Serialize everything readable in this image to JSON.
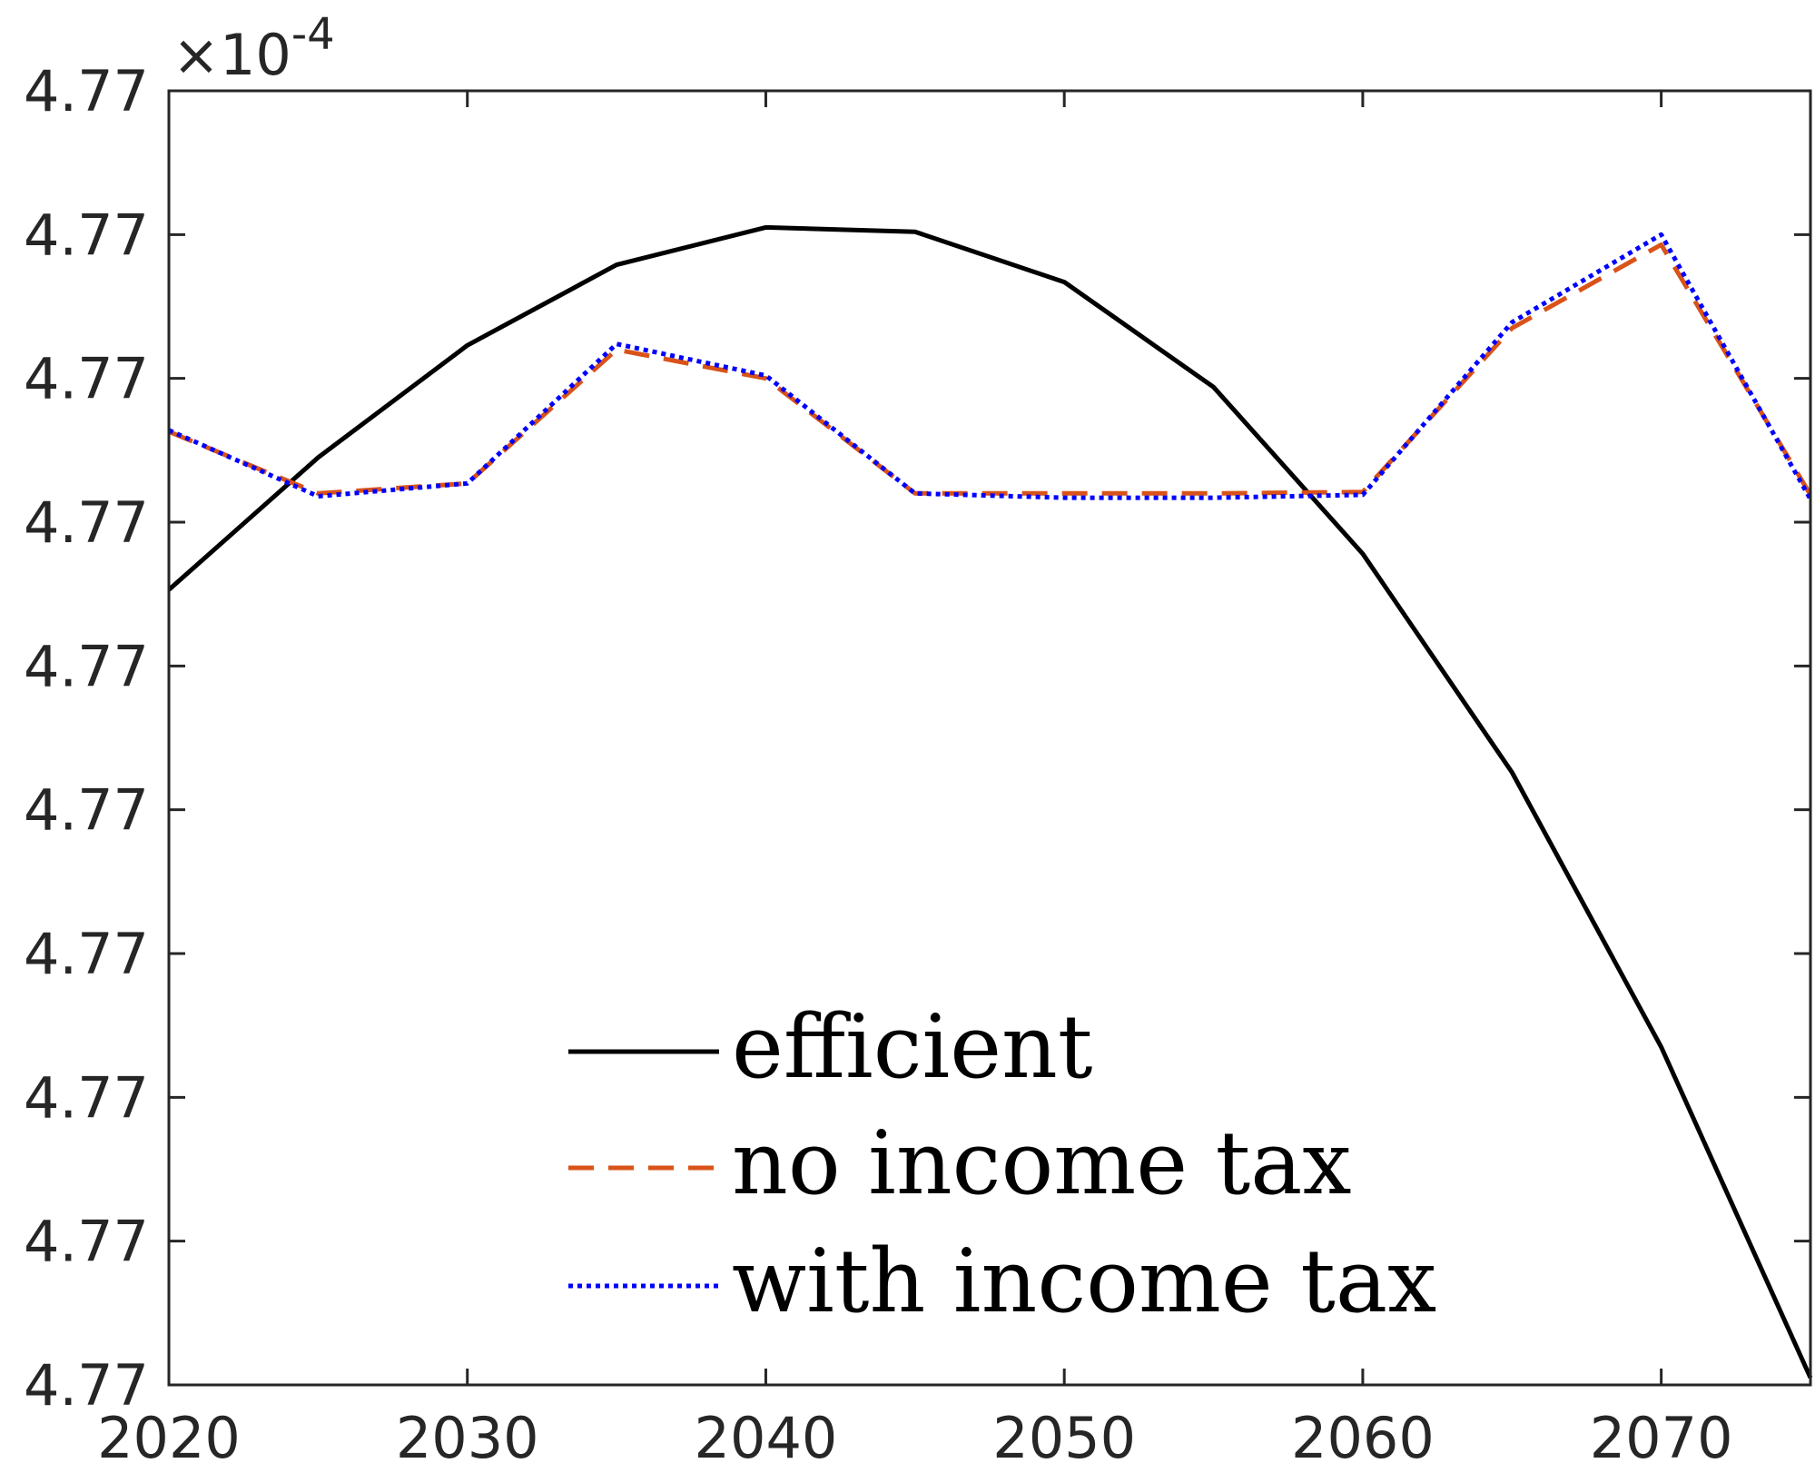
{
  "chart_data": {
    "type": "line",
    "title": "",
    "xlabel": "",
    "ylabel": "",
    "y_exponent_label": "×10",
    "y_exponent_power": "-4",
    "xlim": [
      2020,
      2075
    ],
    "ylim": [
      0,
      9
    ],
    "x_ticks": [
      2020,
      2030,
      2040,
      2050,
      2060,
      2070
    ],
    "x_tick_labels": [
      "2020",
      "2030",
      "2040",
      "2050",
      "2060",
      "2070"
    ],
    "y_tick_labels": [
      "4.77",
      "4.77",
      "4.77",
      "4.77",
      "4.77",
      "4.77",
      "4.77",
      "4.77",
      "4.77",
      "4.77"
    ],
    "grid": false,
    "legend_position": "bottom-center",
    "x": [
      2020,
      2025,
      2030,
      2035,
      2040,
      2045,
      2050,
      2055,
      2060,
      2065,
      2070,
      2075
    ],
    "series": [
      {
        "name": "efficient",
        "color": "#000000",
        "style": "solid",
        "values": [
          5.53,
          6.45,
          7.23,
          7.79,
          8.05,
          8.02,
          7.67,
          6.94,
          5.78,
          4.26,
          2.35,
          0.05
        ]
      },
      {
        "name": "no income tax",
        "color": "#D95319",
        "style": "dashed",
        "values": [
          6.63,
          6.2,
          6.27,
          7.2,
          7.0,
          6.2,
          6.2,
          6.2,
          6.21,
          7.35,
          7.93,
          6.19
        ]
      },
      {
        "name": "with income tax",
        "color": "#0000FF",
        "style": "dotted",
        "values": [
          6.64,
          6.18,
          6.27,
          7.24,
          7.02,
          6.2,
          6.17,
          6.17,
          6.19,
          7.39,
          8.0,
          6.16
        ]
      }
    ]
  }
}
